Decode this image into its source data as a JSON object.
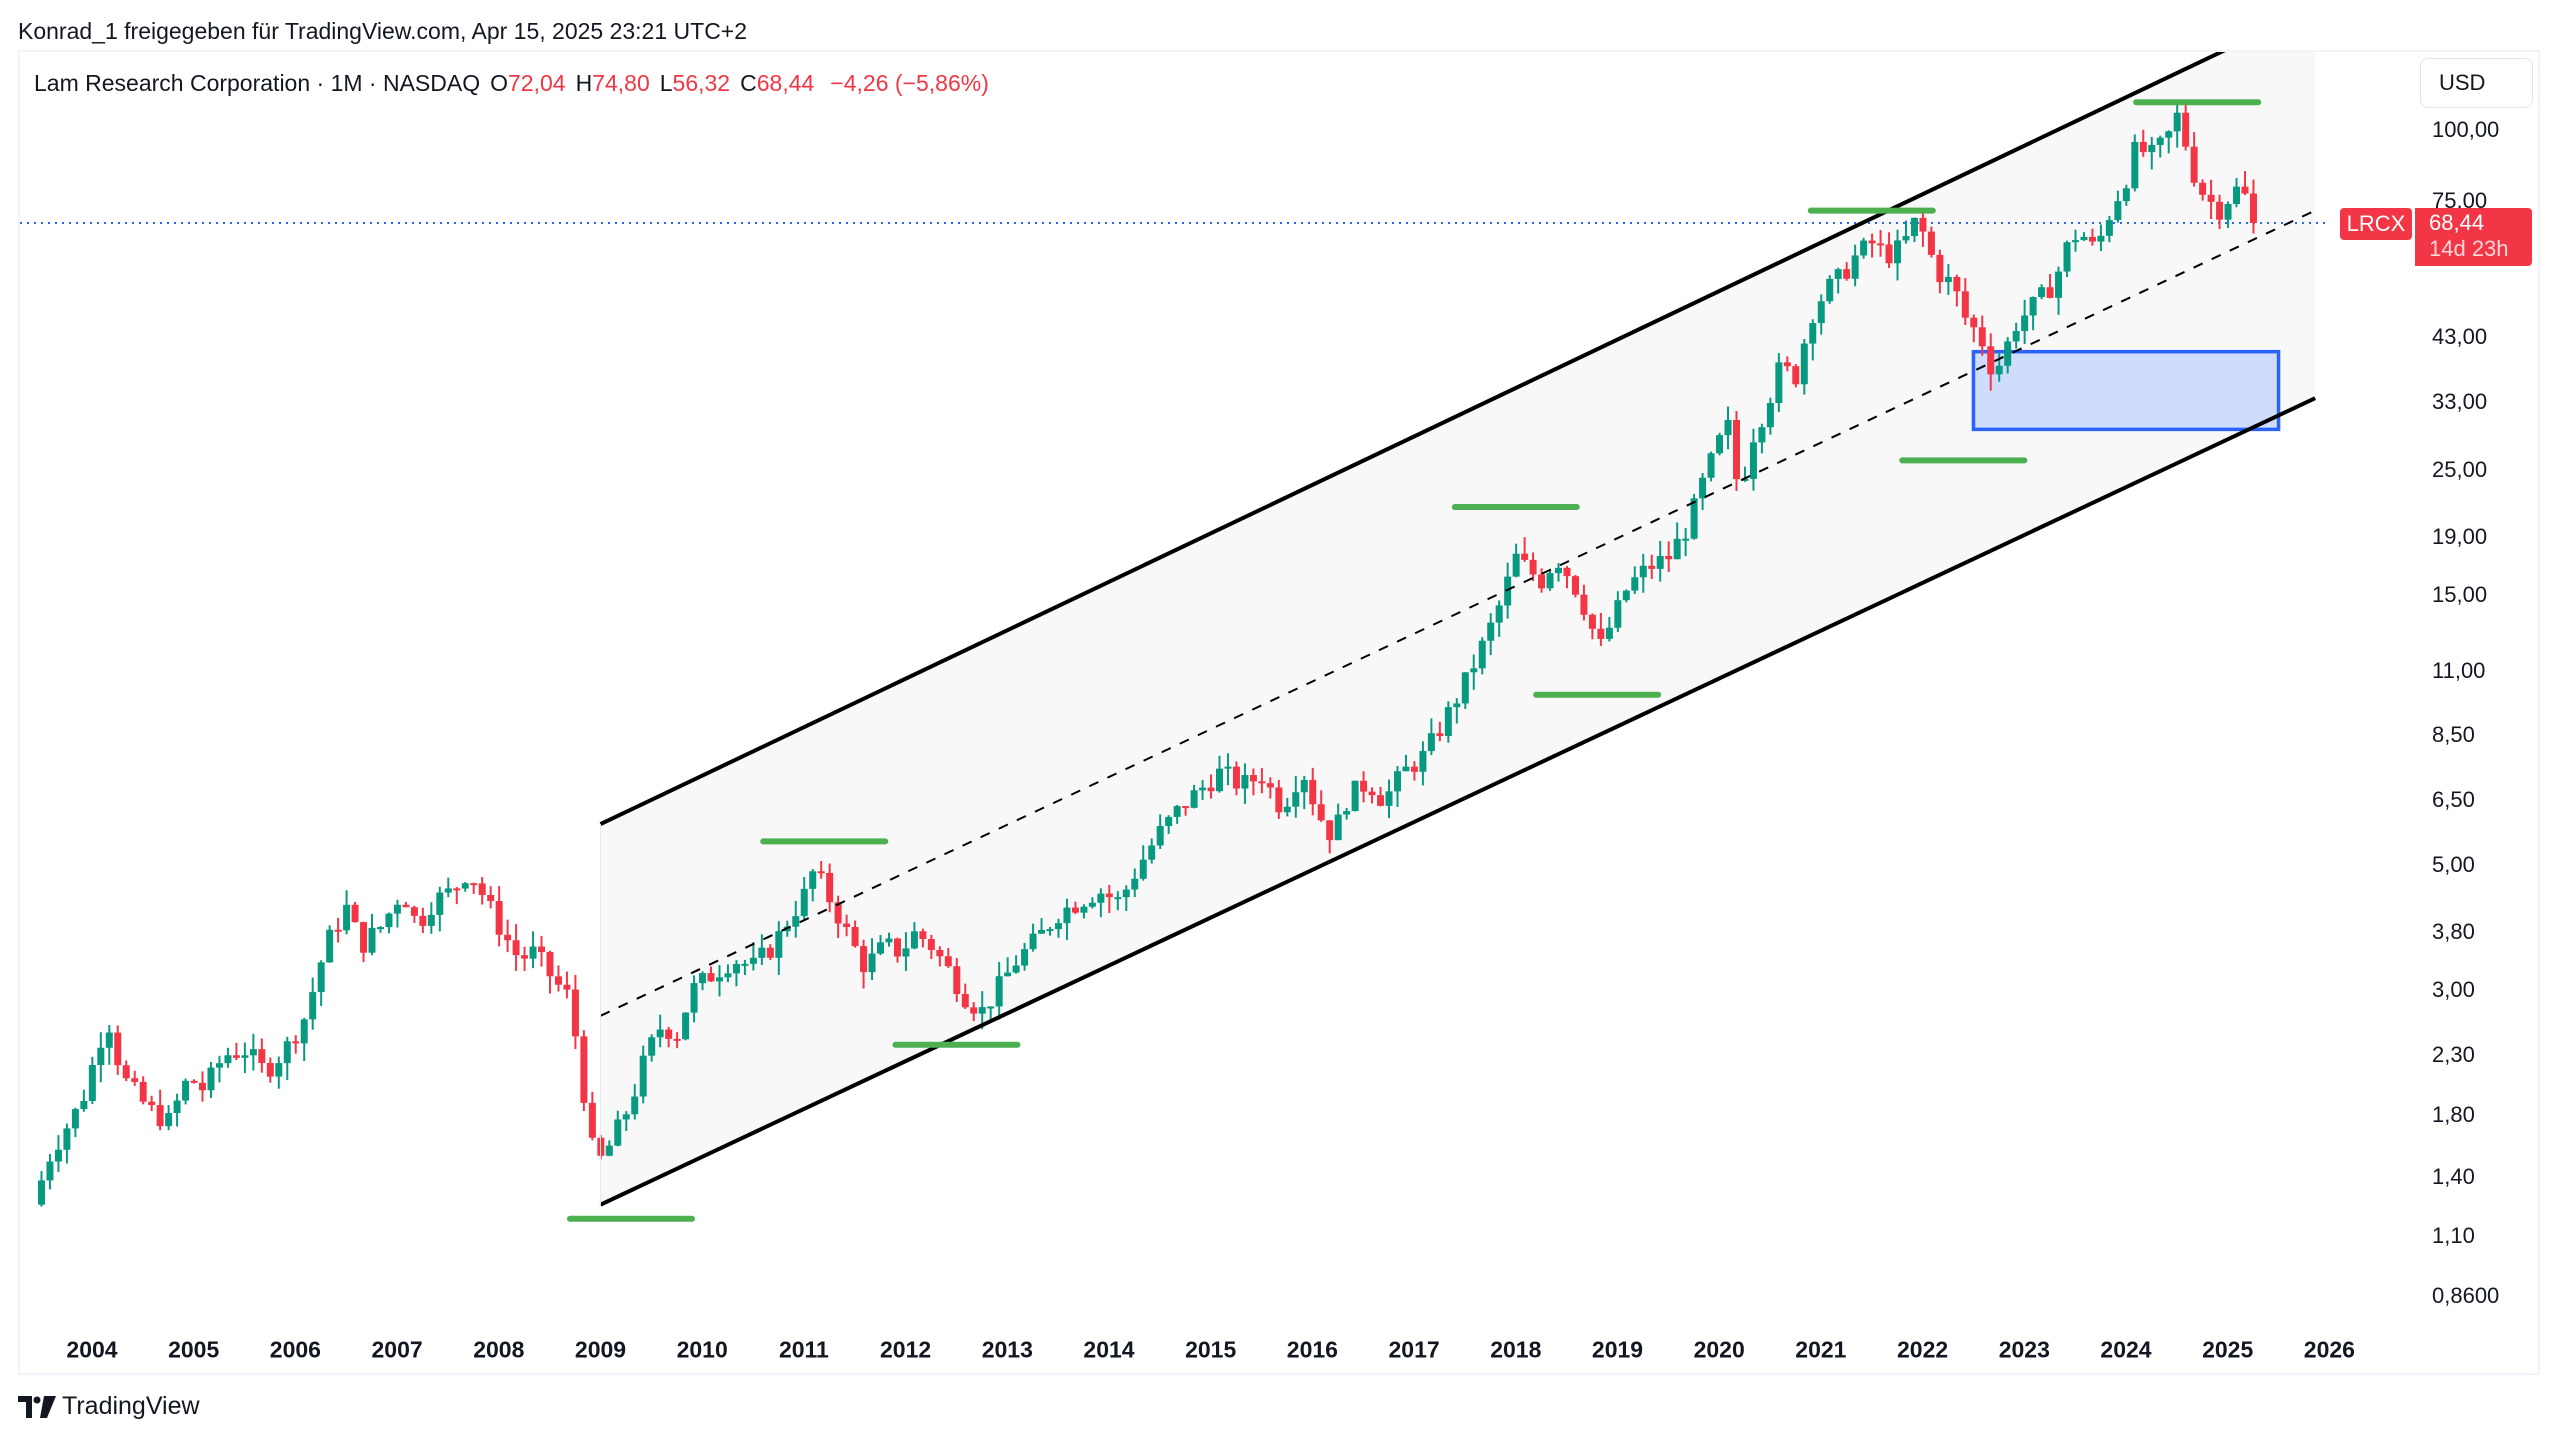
{
  "share_line": "Konrad_1 freigegeben für TradingView.com, Apr 15, 2025 23:21 UTC+2",
  "legend": {
    "symbol_line": "Lam Research Corporation · 1M · NASDAQ",
    "open_key": "O",
    "open": "72,04",
    "high_key": "H",
    "high": "74,80",
    "low_key": "L",
    "low": "56,32",
    "close_key": "C",
    "close": "68,44",
    "change": "−4,26 (−5,86%)"
  },
  "currency_button": "USD",
  "ticker_tag": "LRCX",
  "price_badge": {
    "price": "68,44",
    "countdown": "14d 23h"
  },
  "footer": {
    "brand": "TradingView"
  },
  "colors": {
    "up": "#089981",
    "down": "#f23645",
    "channel_line": "#000000",
    "channel_fill": "#f8f8f9",
    "level_lines": "#4caf50",
    "zone_border": "#2962ff",
    "zone_fill": "#cfdcfc",
    "price_line": "#2962ff"
  },
  "chart_data": {
    "type": "candlestick",
    "title": "Lam Research Corporation · 1M · NASDAQ",
    "symbol": "LRCX",
    "interval": "1M",
    "scale": "log",
    "xlabel": "",
    "ylabel": "USD",
    "x_ticks": [
      "2004",
      "2005",
      "2006",
      "2007",
      "2008",
      "2009",
      "2010",
      "2011",
      "2012",
      "2013",
      "2014",
      "2015",
      "2016",
      "2017",
      "2018",
      "2019",
      "2020",
      "2021",
      "2022",
      "2023",
      "2024",
      "2025",
      "2026"
    ],
    "y_ticks": [
      "100,00",
      "75,00",
      "43,00",
      "33,00",
      "25,00",
      "19,00",
      "15,00",
      "11,00",
      "8,50",
      "6,50",
      "5,00",
      "3,80",
      "3,00",
      "2,30",
      "1,80",
      "1,40",
      "1,10",
      "0,8600"
    ],
    "y_tick_values": [
      100,
      75,
      43,
      33,
      25,
      19,
      15,
      11,
      8.5,
      6.5,
      5,
      3.8,
      3,
      2.3,
      1.8,
      1.4,
      1.1,
      0.86
    ],
    "last": {
      "open": 72.04,
      "high": 74.8,
      "low": 56.32,
      "close": 68.44,
      "change": -4.26,
      "change_pct": -5.86
    },
    "price_path": [
      [
        2003.42,
        1.25
      ],
      [
        2003.6,
        1.55
      ],
      [
        2003.9,
        1.9
      ],
      [
        2004.15,
        2.7
      ],
      [
        2004.3,
        2.1
      ],
      [
        2004.55,
        1.85
      ],
      [
        2004.75,
        1.75
      ],
      [
        2004.95,
        2.1
      ],
      [
        2005.1,
        2.0
      ],
      [
        2005.3,
        2.3
      ],
      [
        2005.5,
        2.35
      ],
      [
        2005.7,
        2.15
      ],
      [
        2005.9,
        2.35
      ],
      [
        2006.1,
        2.7
      ],
      [
        2006.3,
        3.6
      ],
      [
        2006.5,
        4.2
      ],
      [
        2006.65,
        3.6
      ],
      [
        2006.85,
        3.9
      ],
      [
        2007.05,
        4.5
      ],
      [
        2007.2,
        3.9
      ],
      [
        2007.35,
        4.3
      ],
      [
        2007.55,
        4.5
      ],
      [
        2007.7,
        4.9
      ],
      [
        2007.85,
        4.4
      ],
      [
        2008.0,
        3.9
      ],
      [
        2008.2,
        3.4
      ],
      [
        2008.35,
        3.5
      ],
      [
        2008.55,
        3.1
      ],
      [
        2008.7,
        2.9
      ],
      [
        2008.85,
        1.9
      ],
      [
        2008.95,
        1.45
      ],
      [
        2009.1,
        1.6
      ],
      [
        2009.3,
        1.9
      ],
      [
        2009.45,
        2.3
      ],
      [
        2009.6,
        2.6
      ],
      [
        2009.75,
        2.5
      ],
      [
        2009.9,
        3.0
      ],
      [
        2010.1,
        3.2
      ],
      [
        2010.3,
        3.4
      ],
      [
        2010.5,
        3.3
      ],
      [
        2010.7,
        3.6
      ],
      [
        2010.85,
        4.0
      ],
      [
        2011.0,
        4.4
      ],
      [
        2011.1,
        4.9
      ],
      [
        2011.3,
        4.2
      ],
      [
        2011.45,
        3.7
      ],
      [
        2011.6,
        3.3
      ],
      [
        2011.8,
        3.6
      ],
      [
        2011.95,
        3.5
      ],
      [
        2012.1,
        3.8
      ],
      [
        2012.25,
        3.6
      ],
      [
        2012.45,
        3.2
      ],
      [
        2012.6,
        2.9
      ],
      [
        2012.75,
        2.75
      ],
      [
        2012.9,
        3.0
      ],
      [
        2013.1,
        3.4
      ],
      [
        2013.3,
        3.7
      ],
      [
        2013.5,
        4.1
      ],
      [
        2013.7,
        4.3
      ],
      [
        2013.9,
        4.5
      ],
      [
        2014.1,
        4.3
      ],
      [
        2014.3,
        5.0
      ],
      [
        2014.5,
        5.7
      ],
      [
        2014.7,
        6.3
      ],
      [
        2014.9,
        6.8
      ],
      [
        2015.1,
        7.3
      ],
      [
        2015.3,
        6.9
      ],
      [
        2015.5,
        7.2
      ],
      [
        2015.7,
        6.3
      ],
      [
        2015.9,
        7.4
      ],
      [
        2016.05,
        6.2
      ],
      [
        2016.2,
        5.6
      ],
      [
        2016.35,
        6.6
      ],
      [
        2016.55,
        7.0
      ],
      [
        2016.7,
        6.5
      ],
      [
        2016.9,
        7.3
      ],
      [
        2017.1,
        7.8
      ],
      [
        2017.3,
        9.0
      ],
      [
        2017.5,
        10.5
      ],
      [
        2017.7,
        12.5
      ],
      [
        2017.85,
        14.5
      ],
      [
        2018.0,
        17.5
      ],
      [
        2018.1,
        16.8
      ],
      [
        2018.25,
        15.9
      ],
      [
        2018.4,
        17.5
      ],
      [
        2018.55,
        16.0
      ],
      [
        2018.7,
        14.0
      ],
      [
        2018.82,
        12.0
      ],
      [
        2018.95,
        13.5
      ],
      [
        2019.1,
        15.5
      ],
      [
        2019.3,
        16.8
      ],
      [
        2019.5,
        17.5
      ],
      [
        2019.7,
        20.0
      ],
      [
        2019.85,
        24.0
      ],
      [
        2020.0,
        28.0
      ],
      [
        2020.1,
        30.0
      ],
      [
        2020.2,
        22.0
      ],
      [
        2020.3,
        28.0
      ],
      [
        2020.45,
        32.0
      ],
      [
        2020.6,
        38.0
      ],
      [
        2020.75,
        36.5
      ],
      [
        2020.9,
        47.0
      ],
      [
        2021.05,
        52.0
      ],
      [
        2021.2,
        55.0
      ],
      [
        2021.35,
        60.0
      ],
      [
        2021.5,
        63.0
      ],
      [
        2021.65,
        60.0
      ],
      [
        2021.8,
        62.0
      ],
      [
        2021.95,
        70.0
      ],
      [
        2022.05,
        62.0
      ],
      [
        2022.15,
        56.0
      ],
      [
        2022.3,
        53.0
      ],
      [
        2022.45,
        45.0
      ],
      [
        2022.55,
        44.0
      ],
      [
        2022.7,
        37.0
      ],
      [
        2022.8,
        40.0
      ],
      [
        2022.9,
        45.0
      ],
      [
        2023.0,
        47.0
      ],
      [
        2023.15,
        50.0
      ],
      [
        2023.3,
        54.0
      ],
      [
        2023.45,
        64.0
      ],
      [
        2023.55,
        66.0
      ],
      [
        2023.7,
        61.0
      ],
      [
        2023.85,
        72.0
      ],
      [
        2024.0,
        82.0
      ],
      [
        2024.1,
        93.0
      ],
      [
        2024.25,
        90.0
      ],
      [
        2024.4,
        96.0
      ],
      [
        2024.5,
        106.0
      ],
      [
        2024.55,
        100.0
      ],
      [
        2024.7,
        80.0
      ],
      [
        2024.85,
        74.0
      ],
      [
        2024.95,
        72.0
      ],
      [
        2025.05,
        79.0
      ],
      [
        2025.15,
        77.0
      ],
      [
        2025.28,
        72.0
      ],
      [
        2025.29,
        68.44
      ]
    ],
    "annotations": {
      "parallel_channel": {
        "upper": [
          [
            2009.0,
            5.9
          ],
          [
            2025.86,
            165.0
          ]
        ],
        "middle_dashed": [
          [
            2009.0,
            2.7
          ],
          [
            2025.86,
            72.0
          ]
        ],
        "lower": [
          [
            2009.0,
            1.25
          ],
          [
            2025.86,
            33.5
          ]
        ]
      },
      "horizontal_levels": [
        {
          "kind": "low",
          "price": 1.18,
          "from": 2008.7,
          "to": 2009.9
        },
        {
          "kind": "high",
          "price": 5.5,
          "from": 2010.6,
          "to": 2011.8
        },
        {
          "kind": "low",
          "price": 2.4,
          "from": 2011.9,
          "to": 2013.1
        },
        {
          "kind": "high",
          "price": 21.5,
          "from": 2017.4,
          "to": 2018.6
        },
        {
          "kind": "low",
          "price": 10.0,
          "from": 2018.2,
          "to": 2019.4
        },
        {
          "kind": "high",
          "price": 72.0,
          "from": 2020.9,
          "to": 2022.1
        },
        {
          "kind": "low",
          "price": 26.0,
          "from": 2021.8,
          "to": 2023.0
        },
        {
          "kind": "high",
          "price": 112.0,
          "from": 2024.1,
          "to": 2025.3
        }
      ],
      "demand_zone": {
        "top": 40.5,
        "bottom": 29.5,
        "from": 2022.5,
        "to": 2025.5
      },
      "last_price_line": 68.44
    }
  }
}
